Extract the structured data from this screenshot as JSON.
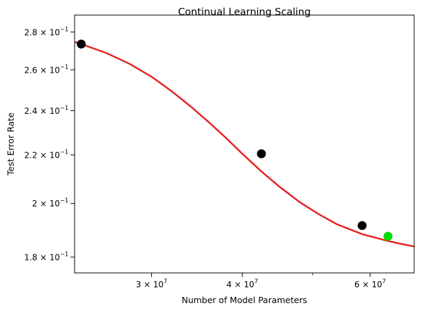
{
  "chart_data": {
    "type": "scatter",
    "title": "Continual Learning Scaling",
    "xlabel": "Number of Model Parameters",
    "ylabel": "Test Error Rate",
    "xscale": "log",
    "yscale": "log",
    "xlim": [
      23500000,
      69000000
    ],
    "ylim": [
      0.1745,
      0.2895
    ],
    "grid": false,
    "x_ticks": [
      {
        "value": 30000000,
        "base": "3 × 10",
        "exp": "7"
      },
      {
        "value": 40000000,
        "base": "4 × 10",
        "exp": "7"
      },
      {
        "value": 60000000,
        "base": "6 × 10",
        "exp": "7"
      }
    ],
    "x_minor_ticks": [
      50000000
    ],
    "y_ticks": [
      {
        "value": 0.18,
        "base": "1.8 × 10",
        "exp": "−1"
      },
      {
        "value": 0.2,
        "base": "2 × 10",
        "exp": "−1"
      },
      {
        "value": 0.22,
        "base": "2.2 × 10",
        "exp": "−1"
      },
      {
        "value": 0.24,
        "base": "2.4 × 10",
        "exp": "−1"
      },
      {
        "value": 0.26,
        "base": "2.6 × 10",
        "exp": "−1"
      },
      {
        "value": 0.28,
        "base": "2.8 × 10",
        "exp": "−1"
      }
    ],
    "points": [
      {
        "x": 24000000,
        "y": 0.2735,
        "color": "#000000"
      },
      {
        "x": 42500000,
        "y": 0.2205,
        "color": "#000000"
      },
      {
        "x": 58500000,
        "y": 0.1915,
        "color": "#000000"
      },
      {
        "x": 63500000,
        "y": 0.1875,
        "color": "#00dd00"
      }
    ],
    "fit_curve": {
      "color": "#e52222",
      "x": [
        23500000,
        24000000,
        26000000,
        28000000,
        30000000,
        32000000,
        34000000,
        36000000,
        38000000,
        40000000,
        42500000,
        45000000,
        48000000,
        51000000,
        54000000,
        58500000,
        63500000,
        66000000,
        69000000
      ],
      "y": [
        0.2746,
        0.2735,
        0.2687,
        0.263,
        0.2565,
        0.2492,
        0.2418,
        0.2345,
        0.2274,
        0.2205,
        0.213,
        0.2067,
        0.2005,
        0.1958,
        0.192,
        0.1883,
        0.1858,
        0.1848,
        0.1838
      ]
    }
  }
}
